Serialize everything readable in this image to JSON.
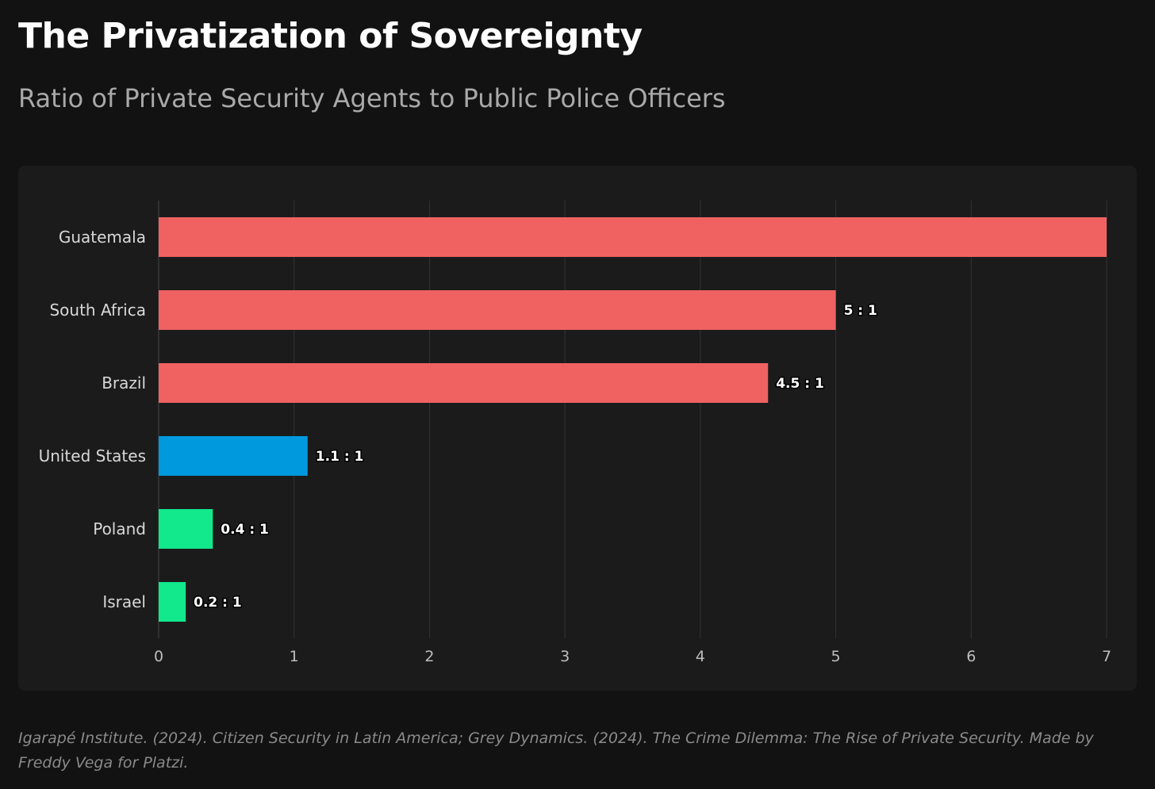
{
  "title": "The Privatization of Sovereignty",
  "subtitle": "Ratio of Private Security Agents to Public Police Officers",
  "source": "Igarapé Institute. (2024). Citizen Security in Latin America; Grey Dynamics. (2024). The Crime Dilemma: The Rise of Private Security. Made by Freddy Vega for Platzi.",
  "chart_data": {
    "type": "bar",
    "orientation": "horizontal",
    "categories": [
      "Guatemala",
      "South Africa",
      "Brazil",
      "United States",
      "Poland",
      "Israel"
    ],
    "values": [
      7,
      5,
      4.5,
      1.1,
      0.4,
      0.2
    ],
    "data_labels": [
      null,
      "5 : 1",
      "4.5 : 1",
      "1.1 : 1",
      "0.4 : 1",
      "0.2 : 1"
    ],
    "colors": [
      "#f06262",
      "#f06262",
      "#f06262",
      "#0099dd",
      "#12e88c",
      "#12e88c"
    ],
    "xlim": [
      0,
      7
    ],
    "xticks": [
      "0",
      "1",
      "2",
      "3",
      "4",
      "5",
      "6",
      "7"
    ],
    "grid": true,
    "xlabel": "",
    "ylabel": ""
  }
}
